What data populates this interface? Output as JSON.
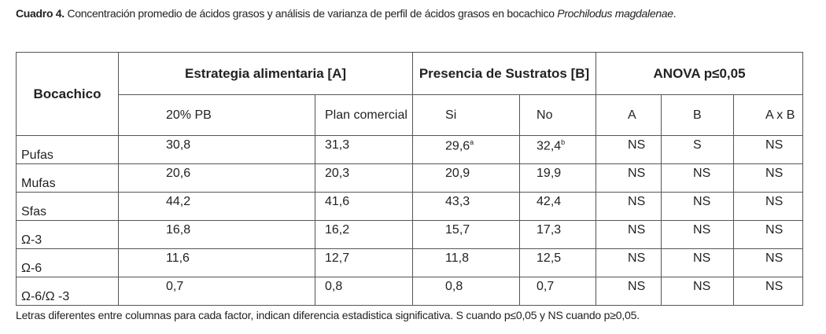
{
  "caption": {
    "label": "Cuadro 4.",
    "text": " Concentración promedio de ácidos grasos y análisis de varianza de perfil de ácidos grasos en bocachico ",
    "species": "Prochilodus magdalenae",
    "end": "."
  },
  "table": {
    "headers": [
      "Bocachico",
      "Estrategia alimentaria [A]",
      "Presencia de Sustratos [B]",
      "ANOVA p≤0,05"
    ],
    "subheaders": [
      "20% PB",
      "Plan comercial",
      "Si",
      "No",
      "A",
      "B",
      "A x B"
    ],
    "rows": [
      [
        "Pufas",
        "30,8",
        "31,3",
        {
          "text": "29,6",
          "sup": "a"
        },
        {
          "text": "32,4",
          "sup": "b"
        },
        "NS",
        "S",
        "NS"
      ],
      [
        "Mufas",
        "20,6",
        "20,3",
        "20,9",
        "19,9",
        "NS",
        "NS",
        "NS"
      ],
      [
        "Sfas",
        "44,2",
        "41,6",
        "43,3",
        "42,4",
        "NS",
        "NS",
        "NS"
      ],
      [
        "Ω-3",
        "16,8",
        "16,2",
        "15,7",
        "17,3",
        "NS",
        "NS",
        "NS"
      ],
      [
        "Ω-6",
        "11,6",
        "12,7",
        "11,8",
        "12,5",
        "NS",
        "NS",
        "NS"
      ],
      [
        "Ω-6/Ω -3",
        "0,7",
        "0,8",
        "0,8",
        "0,7",
        "NS",
        "NS",
        "NS"
      ]
    ]
  },
  "footnote": "Letras diferentes entre columnas para cada factor, indican diferencia estadistica significativa. S cuando p≤0,05 y NS cuando p≥0,05."
}
